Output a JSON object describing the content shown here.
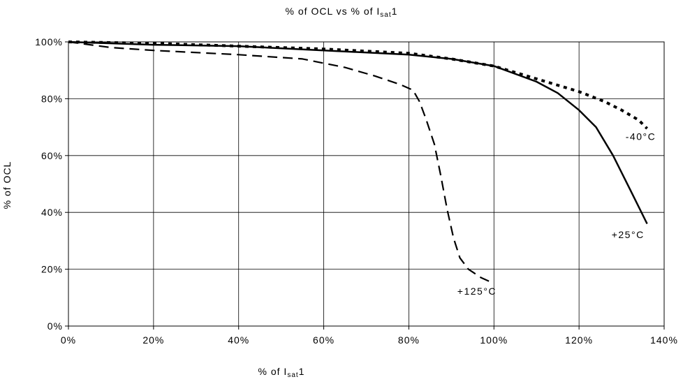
{
  "chart_data": {
    "type": "line",
    "title": {
      "pre": "% of OCL vs % of I",
      "sub": "sat",
      "post": "1"
    },
    "xlabel": {
      "pre": "% of I",
      "sub": "sat",
      "post": "1"
    },
    "ylabel": "% of OCL",
    "xlim": [
      0,
      140
    ],
    "ylim": [
      0,
      100
    ],
    "xticks": [
      "0%",
      "20%",
      "40%",
      "60%",
      "80%",
      "100%",
      "120%",
      "140%"
    ],
    "yticks": [
      "0%",
      "20%",
      "40%",
      "60%",
      "80%",
      "100%"
    ],
    "grid": true,
    "series": [
      {
        "name": "+25°C",
        "style": "solid",
        "points": [
          [
            0,
            100
          ],
          [
            20,
            99
          ],
          [
            40,
            98.5
          ],
          [
            60,
            97
          ],
          [
            80,
            95.5
          ],
          [
            90,
            94
          ],
          [
            100,
            91.5
          ],
          [
            110,
            86
          ],
          [
            115,
            82
          ],
          [
            120,
            76
          ],
          [
            124,
            70
          ],
          [
            128,
            60
          ],
          [
            132,
            48
          ],
          [
            136,
            36
          ]
        ]
      },
      {
        "name": "-40°C",
        "style": "dotted",
        "points": [
          [
            0,
            100
          ],
          [
            20,
            99.5
          ],
          [
            40,
            98.5
          ],
          [
            60,
            97.5
          ],
          [
            80,
            96
          ],
          [
            90,
            94
          ],
          [
            100,
            91.5
          ],
          [
            110,
            87
          ],
          [
            120,
            82.5
          ],
          [
            126,
            79
          ],
          [
            130,
            76
          ],
          [
            134,
            72.5
          ],
          [
            136,
            69.5
          ]
        ]
      },
      {
        "name": "+125°C",
        "style": "dashed",
        "points": [
          [
            0,
            100
          ],
          [
            10,
            98
          ],
          [
            20,
            97
          ],
          [
            40,
            95.5
          ],
          [
            55,
            94
          ],
          [
            65,
            91
          ],
          [
            72,
            88
          ],
          [
            78,
            85
          ],
          [
            81,
            83
          ],
          [
            82.5,
            79
          ],
          [
            84,
            73
          ],
          [
            86,
            64
          ],
          [
            87.5,
            53
          ],
          [
            89,
            41
          ],
          [
            90.5,
            31
          ],
          [
            92,
            24
          ],
          [
            94,
            20
          ],
          [
            97,
            17
          ],
          [
            100,
            15
          ]
        ]
      }
    ],
    "annotations": [
      {
        "text": "-40°C",
        "series": "-40°C",
        "x": 134.5,
        "y": 65.5
      },
      {
        "text": "+25°C",
        "series": "+25°C",
        "x": 131.5,
        "y": 31
      },
      {
        "text": "+125°C",
        "series": "+125°C",
        "x": 96,
        "y": 11
      }
    ],
    "colors": {
      "line": "#000000",
      "grid": "#000000",
      "background": "#ffffff"
    }
  }
}
